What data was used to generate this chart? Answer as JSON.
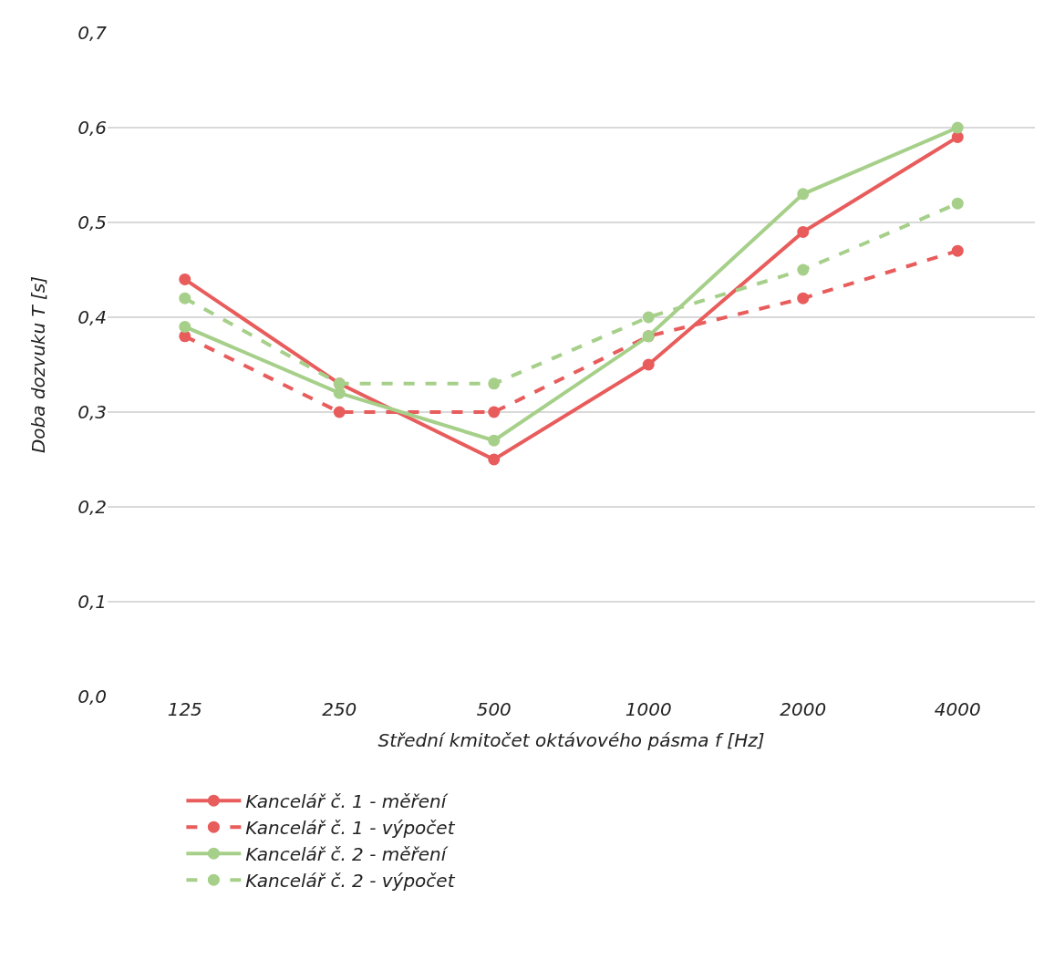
{
  "chart_data": {
    "type": "line",
    "xlabel": "Střední kmitočet oktávového pásma f [Hz]",
    "ylabel": "Doba dozvuku T [s]",
    "categories": [
      "125",
      "250",
      "500",
      "1000",
      "2000",
      "4000"
    ],
    "series": [
      {
        "name": "Kancelář č. 1 - měření",
        "color": "#e85c5c",
        "line_style": "solid",
        "values": [
          0.44,
          0.33,
          0.25,
          0.35,
          0.49,
          0.59
        ]
      },
      {
        "name": "Kancelář č. 1 - výpočet",
        "color": "#e85c5c",
        "line_style": "dashed",
        "values": [
          0.38,
          0.3,
          0.3,
          0.38,
          0.42,
          0.47
        ]
      },
      {
        "name": "Kancelář č. 2 - měření",
        "color": "#a6d08a",
        "line_style": "solid",
        "values": [
          0.39,
          0.32,
          0.27,
          0.38,
          0.53,
          0.6
        ]
      },
      {
        "name": "Kancelář č. 2 - výpočet",
        "color": "#a6d08a",
        "line_style": "dashed",
        "values": [
          0.42,
          0.33,
          0.33,
          0.4,
          0.45,
          0.52
        ]
      }
    ],
    "ylim": [
      0,
      0.7
    ],
    "yticks": [
      {
        "value": 0,
        "label": "0,0"
      },
      {
        "value": 0.1,
        "label": "0,1"
      },
      {
        "value": 0.2,
        "label": "0,2"
      },
      {
        "value": 0.3,
        "label": "0,3"
      },
      {
        "value": 0.4,
        "label": "0,4"
      },
      {
        "value": 0.5,
        "label": "0,5"
      },
      {
        "value": 0.6,
        "label": "0,6"
      },
      {
        "value": 0.7,
        "label": "0,7"
      }
    ],
    "grid": "y",
    "legend": "bottom",
    "marker": "circle"
  }
}
